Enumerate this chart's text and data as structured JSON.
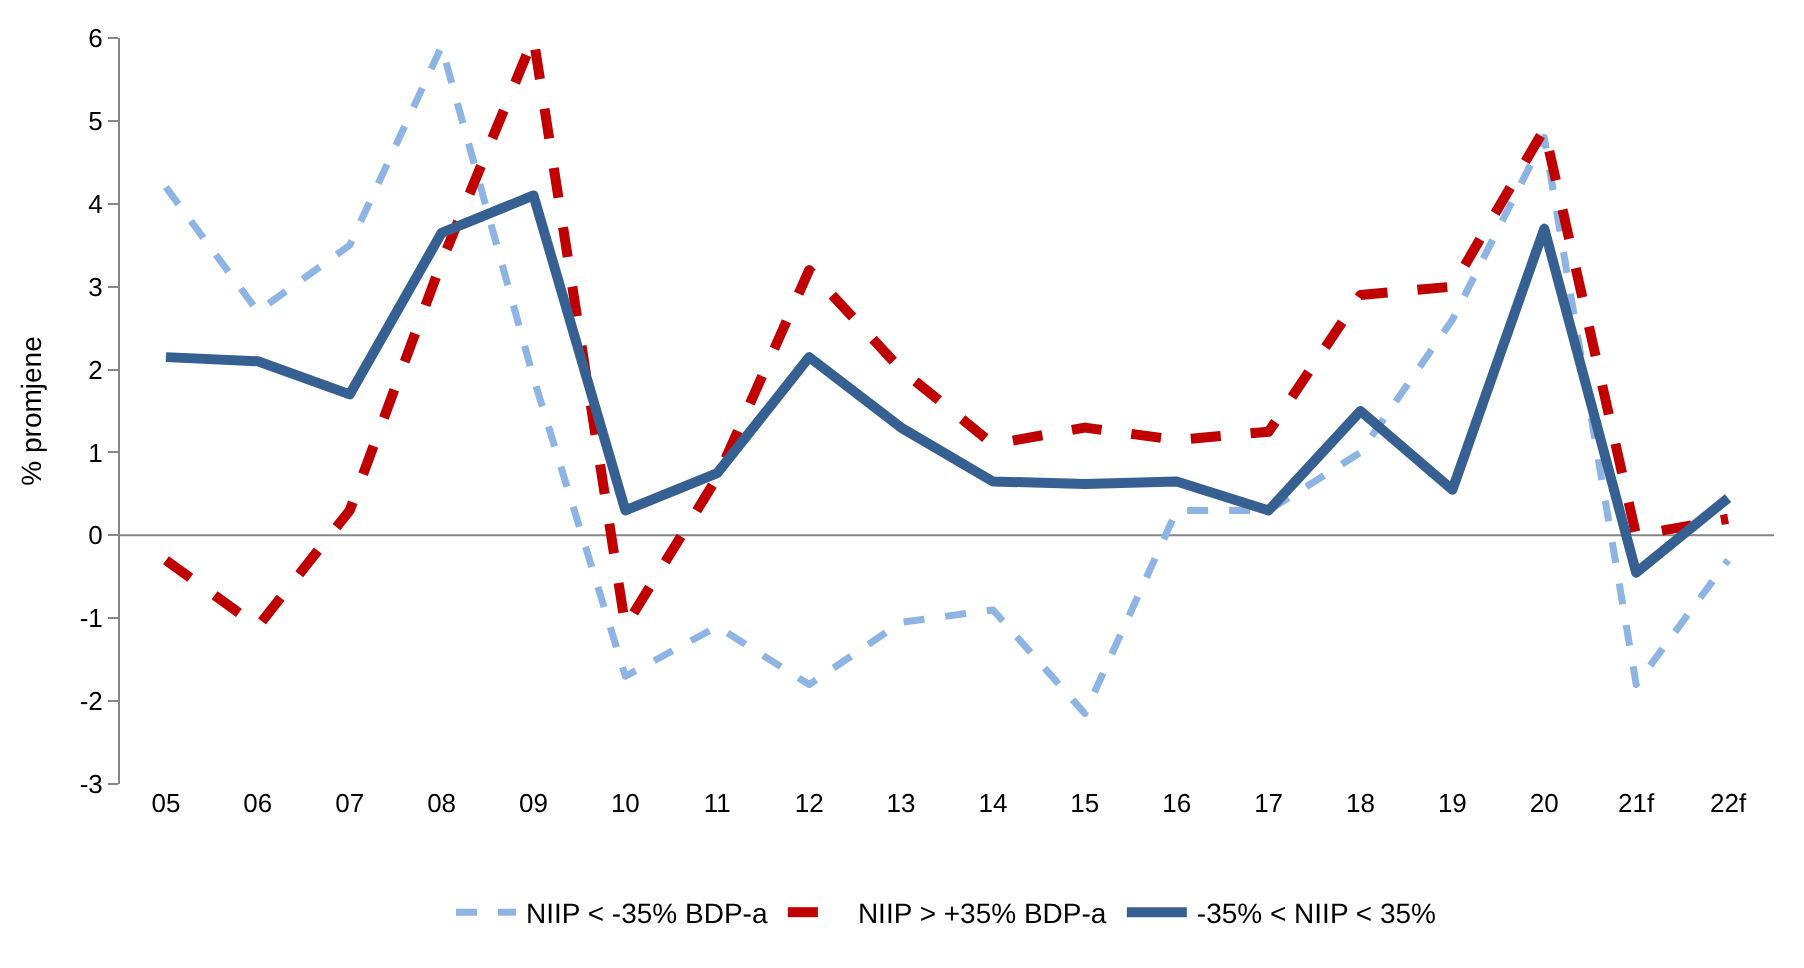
{
  "chart_data": {
    "type": "line",
    "ylabel": "% promjene",
    "categories": [
      "05",
      "06",
      "07",
      "08",
      "09",
      "10",
      "11",
      "12",
      "13",
      "14",
      "15",
      "16",
      "17",
      "18",
      "19",
      "20",
      "21f",
      "22f"
    ],
    "ylim": [
      -3,
      6
    ],
    "yticks": [
      -3,
      -2,
      -1,
      0,
      1,
      2,
      3,
      4,
      5,
      6
    ],
    "legend": "bottom",
    "series": [
      {
        "name": "NIIP < -35% BDP-a",
        "color": "#8eb4e3",
        "line_style": "dashed",
        "values": [
          4.2,
          2.7,
          3.5,
          5.9,
          1.9,
          -1.7,
          -1.1,
          -1.8,
          -1.05,
          -0.9,
          -2.15,
          0.3,
          0.3,
          1.0,
          2.6,
          4.8,
          -1.8,
          -0.3
        ]
      },
      {
        "name": "NIIP > +35% BDP-a",
        "color": "#c00000",
        "line_style": "dashed",
        "values": [
          -0.3,
          -1.1,
          0.3,
          3.3,
          6.0,
          -1.1,
          0.7,
          3.2,
          2.0,
          1.1,
          1.3,
          1.15,
          1.25,
          2.9,
          3.0,
          4.9,
          0.0,
          0.2
        ]
      },
      {
        "name": "-35% < NIIP < 35%",
        "color": "#376092",
        "line_style": "solid",
        "values": [
          2.15,
          2.1,
          1.7,
          3.65,
          4.1,
          0.3,
          0.75,
          2.15,
          1.3,
          0.65,
          0.62,
          0.65,
          0.3,
          1.5,
          0.55,
          3.7,
          -0.45,
          0.45
        ]
      }
    ]
  }
}
